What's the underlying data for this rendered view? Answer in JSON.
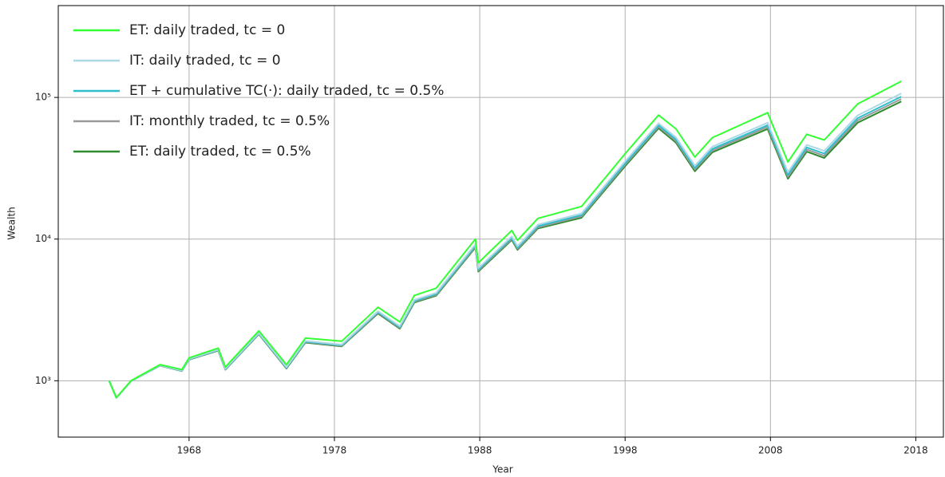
{
  "chart_data": {
    "type": "line",
    "x_label": "Year",
    "y_label": "Wealth",
    "log_y": true,
    "grid": true,
    "legend": "upper left",
    "xlim": [
      1959,
      2019.9
    ],
    "xticks": [
      1968,
      1978,
      1988,
      1998,
      2008,
      2018
    ],
    "ylim": [
      400,
      445000
    ],
    "yticks": [
      {
        "value": 1000,
        "label": "10³"
      },
      {
        "value": 10000,
        "label": "10⁴"
      },
      {
        "value": 100000,
        "label": "10⁵"
      }
    ],
    "x": [
      1962.5,
      1963.0,
      1964,
      1966,
      1967.5,
      1968,
      1970,
      1970.5,
      1972.8,
      1974.7,
      1976,
      1978.5,
      1981,
      1982.5,
      1983.5,
      1985,
      1987.7,
      1987.9,
      1990.2,
      1990.6,
      1992,
      1995,
      1998,
      2000.3,
      2001.5,
      2002.8,
      2004,
      2007.8,
      2009.2,
      2010.5,
      2011.7,
      2014,
      2017
    ],
    "series": [
      {
        "name": "ET: daily traded, tc = 0",
        "color": "#33ff33",
        "values": [
          1000,
          760,
          1000,
          1300,
          1200,
          1450,
          1700,
          1250,
          2250,
          1300,
          2000,
          1900,
          3300,
          2600,
          4000,
          4500,
          10000,
          6800,
          11500,
          9800,
          14000,
          17000,
          40000,
          75000,
          60000,
          38000,
          52000,
          78000,
          35000,
          55000,
          50000,
          90000,
          130000
        ]
      },
      {
        "name": "IT: daily traded, tc = 0",
        "color": "#add8e6",
        "values": [
          1000,
          759,
          995,
          1286,
          1181,
          1424,
          1657,
          1216,
          2173,
          1249,
          1910,
          1801,
          3098,
          2427,
          3719,
          4168,
          9172,
          6225,
          10444,
          8900,
          12639,
          15164,
          35320,
          65685,
          52224,
          32938,
          44886,
          66347,
          29645,
          46288,
          41900,
          74772,
          106600
        ]
      },
      {
        "name": "ET + cumulative TC(·): daily traded, tc = 0.5%",
        "color": "#2fbfcc",
        "values": [
          1000,
          758,
          993,
          1283,
          1176,
          1418,
          1648,
          1209,
          2156,
          1237,
          1890,
          1779,
          3053,
          2388,
          3657,
          4094,
          8988,
          6097,
          10210,
          8700,
          12337,
          14756,
          34280,
          63615,
          50496,
          31814,
          43306,
          63757,
          28455,
          44352,
          40100,
          71388,
          101400
        ]
      },
      {
        "name": "IT: monthly traded, tc = 0.5%",
        "color": "#999999",
        "values": [
          1000,
          758,
          993,
          1281,
          1173,
          1414,
          1641,
          1203,
          2143,
          1229,
          1875,
          1762,
          3020,
          2360,
          3610,
          4039,
          8850,
          6001,
          10034,
          8551,
          12110,
          14450,
          33500,
          62063,
          49200,
          30970,
          42120,
          61815,
          27563,
          42900,
          38750,
          68850,
          97500
        ]
      },
      {
        "name": "ET: daily traded, tc = 0.5%",
        "color": "#2e8b2e",
        "values": [
          1000,
          758,
          992,
          1278,
          1170,
          1409,
          1633,
          1198,
          2130,
          1220,
          1860,
          1746,
          2986,
          2331,
          3563,
          3983,
          8712,
          5905,
          9858,
          8401,
          11883,
          14144,
          32720,
          60510,
          47904,
          30126,
          40934,
          59873,
          26670,
          41448,
          37400,
          66312,
          93600
        ]
      }
    ]
  }
}
